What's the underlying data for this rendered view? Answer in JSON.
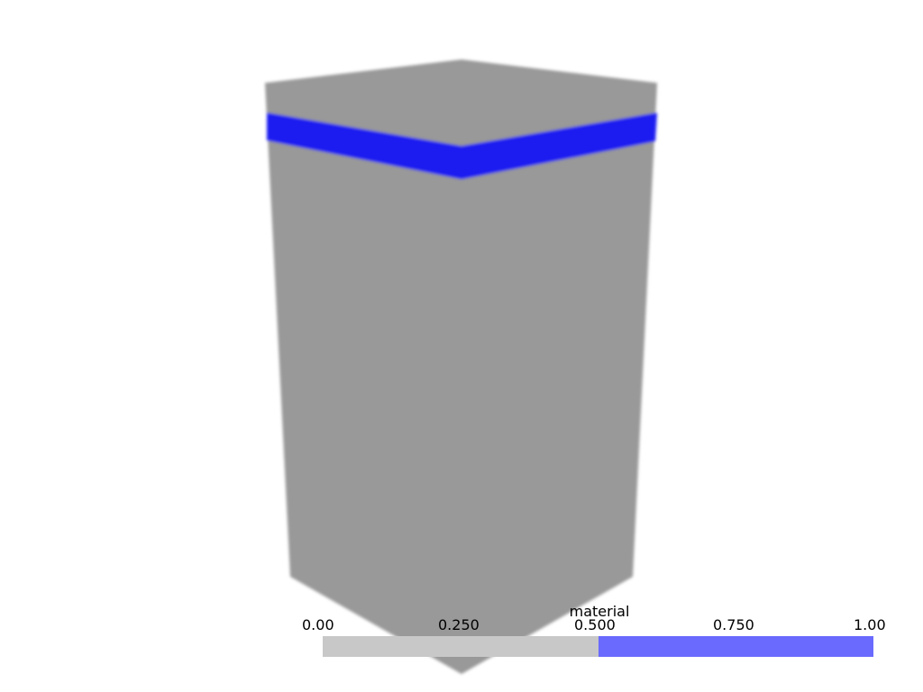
{
  "scene": {
    "body_color": "#999999",
    "band_color": "#1a1af0"
  },
  "scalar_bar": {
    "title": "material",
    "ticks": [
      "0.00",
      "0.250",
      "0.500",
      "0.750",
      "1.00"
    ],
    "range": [
      0,
      1
    ],
    "colors": {
      "low": "#c8c8c8",
      "high": "#6a6aff"
    },
    "threshold": 0.5
  }
}
